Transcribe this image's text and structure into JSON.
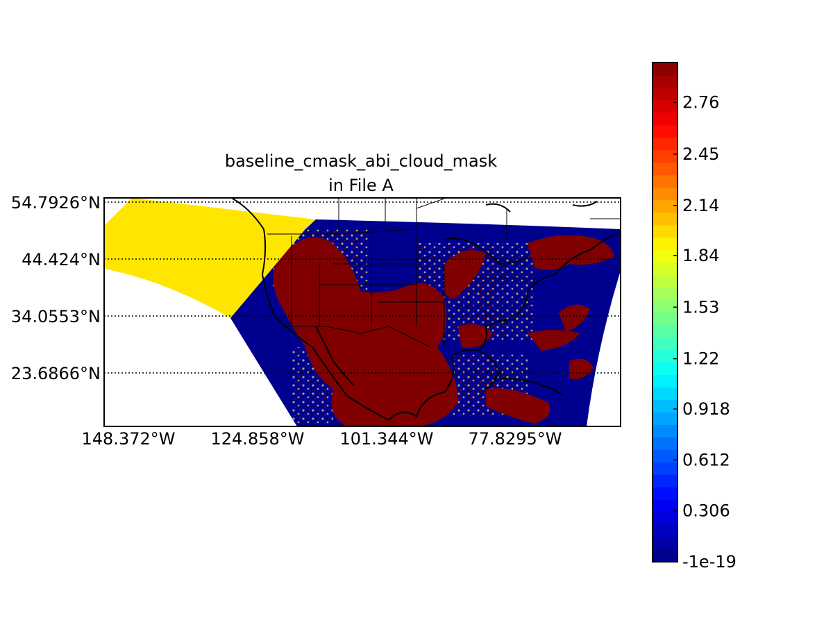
{
  "title_line1": "baseline_cmask_abi_cloud_mask",
  "title_line2": "in File A",
  "map": {
    "lat_labels": [
      "54.7926°N",
      "44.424°N",
      "34.0553°N",
      "23.6866°N"
    ],
    "lon_labels": [
      "148.372°W",
      "124.858°W",
      "101.344°W",
      "77.8295°W"
    ],
    "gridlines": "dotted",
    "colors": {
      "clear": "#00008f",
      "cloudy": "#800000",
      "no_data_region": "#ffe600",
      "mixed": "#a6a680",
      "coastline": "#000000"
    }
  },
  "colorbar": {
    "min": -1e-19,
    "max": 3.0,
    "colormap": "jet",
    "levels": 40,
    "tick_labels": [
      "-1e-19",
      "0.306",
      "0.612",
      "0.918",
      "1.22",
      "1.53",
      "1.84",
      "2.14",
      "2.45",
      "2.76"
    ],
    "tick_values": [
      0,
      0.306,
      0.612,
      0.918,
      1.22,
      1.53,
      1.84,
      2.14,
      2.45,
      2.76
    ]
  }
}
